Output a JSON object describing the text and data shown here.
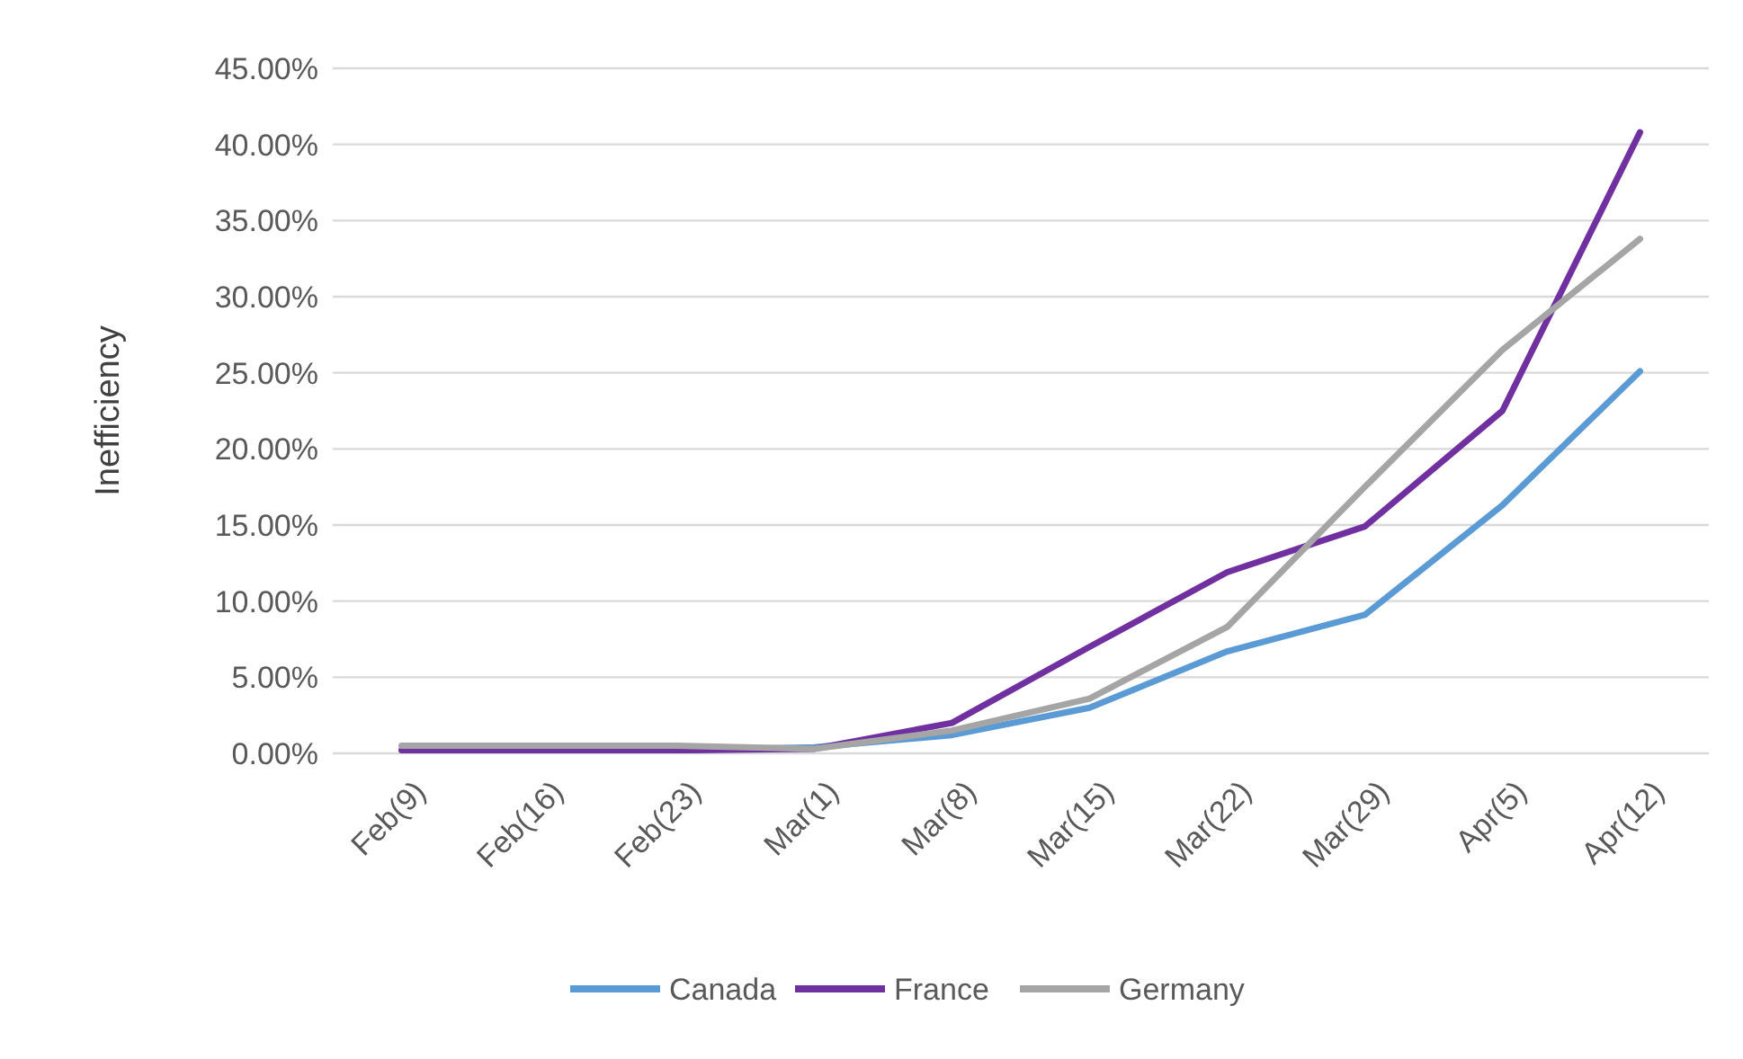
{
  "chart_data": {
    "type": "line",
    "ylabel": "Inefficiency",
    "categories": [
      "Feb(9)",
      "Feb(16)",
      "Feb(23)",
      "Mar(1)",
      "Mar(8)",
      "Mar(15)",
      "Mar(22)",
      "Mar(29)",
      "Apr(5)",
      "Apr(12)"
    ],
    "series": [
      {
        "name": "Canada",
        "color": "#5b9bd5",
        "values": [
          null,
          null,
          0.2,
          0.4,
          1.2,
          3.0,
          6.7,
          9.1,
          16.3,
          25.1
        ]
      },
      {
        "name": "France",
        "color": "#7030a0",
        "values": [
          0.2,
          0.2,
          0.2,
          0.3,
          2.0,
          7.0,
          11.9,
          14.9,
          22.5,
          40.8
        ]
      },
      {
        "name": "Germany",
        "color": "#a5a5a5",
        "values": [
          0.5,
          0.5,
          0.5,
          0.3,
          1.5,
          3.6,
          8.3,
          17.5,
          26.5,
          33.8
        ]
      }
    ],
    "ylim": [
      0,
      45
    ],
    "yticks": [
      {
        "value": 0,
        "label": "0.00%"
      },
      {
        "value": 5,
        "label": "5.00%"
      },
      {
        "value": 10,
        "label": "10.00%"
      },
      {
        "value": 15,
        "label": "15.00%"
      },
      {
        "value": 20,
        "label": "20.00%"
      },
      {
        "value": 25,
        "label": "25.00%"
      },
      {
        "value": 30,
        "label": "30.00%"
      },
      {
        "value": 35,
        "label": "35.00%"
      },
      {
        "value": 40,
        "label": "40.00%"
      },
      {
        "value": 45,
        "label": "45.00%"
      }
    ],
    "grid": "y",
    "legend": "bottom",
    "marker": "none",
    "line_style": "solid"
  }
}
